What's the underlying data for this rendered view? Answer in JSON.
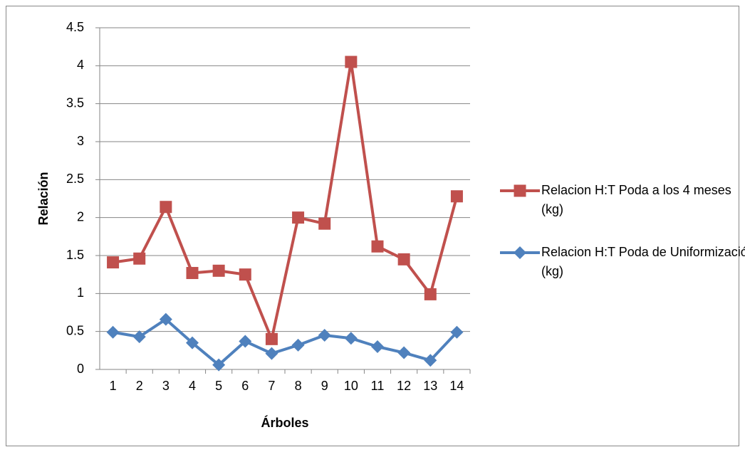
{
  "chart_data": {
    "type": "line",
    "x_label": "Árboles",
    "y_label": "Relación",
    "categories": [
      "1",
      "2",
      "3",
      "4",
      "5",
      "6",
      "7",
      "8",
      "9",
      "10",
      "11",
      "12",
      "13",
      "14"
    ],
    "series": [
      {
        "name": "Relacion H:T  Poda a los 4 meses (kg)",
        "color": "#c0504d",
        "marker": "square",
        "values": [
          1.41,
          1.46,
          2.14,
          1.27,
          1.3,
          1.25,
          0.4,
          2.0,
          1.92,
          4.05,
          1.62,
          1.45,
          0.99,
          2.28
        ]
      },
      {
        "name": "Relacion H:T Poda de Uniformización (kg)",
        "color": "#4f81bd",
        "marker": "diamond",
        "values": [
          0.49,
          0.43,
          0.66,
          0.35,
          0.06,
          0.37,
          0.21,
          0.32,
          0.45,
          0.41,
          0.3,
          0.22,
          0.12,
          0.49
        ]
      }
    ],
    "ylim": [
      0,
      4.5
    ],
    "yticks": [
      0,
      0.5,
      1,
      1.5,
      2,
      2.5,
      3,
      3.5,
      4,
      4.5
    ],
    "grid": true,
    "legend": "right"
  }
}
